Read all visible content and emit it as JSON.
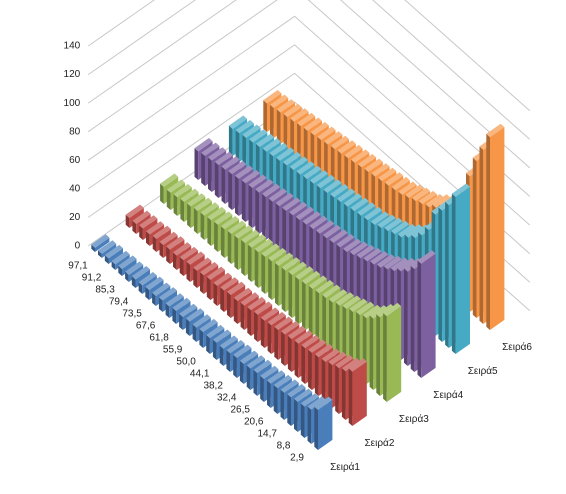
{
  "chart_data": {
    "type": "bar3d",
    "categories": [
      "2,9",
      null,
      "8,8",
      null,
      "14,7",
      null,
      "20,6",
      null,
      "26,5",
      null,
      "32,4",
      null,
      "38,2",
      null,
      "44,1",
      null,
      "50,0",
      null,
      "55,9",
      null,
      "61,8",
      null,
      "67,6",
      null,
      "73,5",
      null,
      "79,4",
      null,
      "85,3",
      null,
      "91,2",
      null,
      "97,1",
      null
    ],
    "series": [
      {
        "name": "Σειρά1",
        "color": "#4a7ebb",
        "values": [
          28,
          24,
          22,
          21,
          20,
          19,
          18,
          17,
          16,
          16,
          15,
          14,
          14,
          13,
          12,
          12,
          11,
          11,
          10,
          10,
          9,
          9,
          8,
          8,
          7,
          7,
          6,
          6,
          5,
          5,
          4,
          4,
          3,
          3
        ]
      },
      {
        "name": "Σειρά2",
        "color": "#be4b48",
        "values": [
          38,
          34,
          32,
          30,
          28,
          27,
          26,
          25,
          24,
          23,
          22,
          21,
          20,
          19,
          19,
          18,
          17,
          16,
          16,
          15,
          14,
          14,
          13,
          12,
          12,
          11,
          10,
          10,
          9,
          9,
          8,
          8,
          7,
          7
        ]
      },
      {
        "name": "Σειρά3",
        "color": "#98b954",
        "values": [
          60,
          55,
          50,
          46,
          44,
          42,
          40,
          38,
          36,
          35,
          34,
          33,
          32,
          31,
          30,
          29,
          28,
          27,
          26,
          25,
          24,
          23,
          22,
          21,
          20,
          19,
          18,
          17,
          16,
          15,
          14,
          13,
          12,
          12
        ]
      },
      {
        "name": "Σειρά4",
        "color": "#7d60a0",
        "values": [
          80,
          72,
          66,
          62,
          58,
          55,
          52,
          50,
          48,
          46,
          44,
          42,
          41,
          40,
          39,
          38,
          37,
          36,
          35,
          34,
          33,
          32,
          31,
          30,
          29,
          28,
          27,
          26,
          25,
          24,
          23,
          22,
          21,
          20
        ]
      },
      {
        "name": "Σειρά5",
        "color": "#46aac5",
        "values": [
          110,
          100,
          92,
          85,
          70,
          62,
          56,
          52,
          48,
          46,
          44,
          42,
          40,
          39,
          38,
          37,
          36,
          35,
          34,
          33,
          32,
          31,
          30,
          29,
          28,
          27,
          26,
          25,
          24,
          23,
          22,
          21,
          20,
          19
        ]
      },
      {
        "name": "Σειρά6",
        "color": "#f79646",
        "values": [
          135,
          122,
          110,
          95,
          80,
          70,
          62,
          56,
          52,
          48,
          46,
          44,
          42,
          40,
          39,
          38,
          37,
          36,
          35,
          34,
          33,
          32,
          31,
          30,
          29,
          28,
          27,
          26,
          25,
          24,
          23,
          22,
          21,
          20
        ]
      }
    ],
    "ylim": [
      0,
      140
    ],
    "yticks": [
      0,
      20,
      40,
      60,
      80,
      100,
      120,
      140
    ],
    "grid": true
  }
}
